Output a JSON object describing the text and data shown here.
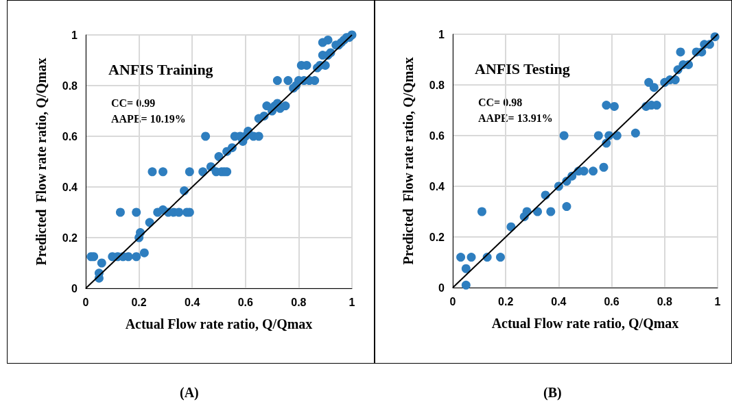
{
  "chart_data": [
    {
      "type": "scatter",
      "title": "ANFIS Training",
      "xlabel": "Actual Flow rate ratio, Q/Qmax",
      "ylabel": "Predicted  Flow rate ratio, Q/Qmax",
      "annotations": [
        "CC= 0.99",
        "AAPE= 10.19%",
        "(A)"
      ],
      "xlim": [
        0,
        1
      ],
      "ylim": [
        0,
        1
      ],
      "xticks": [
        0,
        0.2,
        0.4,
        0.6,
        0.8,
        1
      ],
      "yticks": [
        0,
        0.2,
        0.4,
        0.6,
        0.8,
        1
      ],
      "grid": true,
      "marker": "circle",
      "series": [
        {
          "color": "#2e7ebf",
          "x": [
            0.02,
            0.03,
            0.06,
            0.05,
            0.05,
            0.1,
            0.12,
            0.13,
            0.14,
            0.16,
            0.19,
            0.19,
            0.2,
            0.205,
            0.22,
            0.24,
            0.25,
            0.27,
            0.29,
            0.29,
            0.31,
            0.33,
            0.35,
            0.37,
            0.38,
            0.39,
            0.39,
            0.44,
            0.45,
            0.47,
            0.49,
            0.5,
            0.51,
            0.52,
            0.53,
            0.53,
            0.55,
            0.56,
            0.58,
            0.59,
            0.6,
            0.61,
            0.63,
            0.65,
            0.65,
            0.67,
            0.68,
            0.7,
            0.71,
            0.72,
            0.72,
            0.73,
            0.75,
            0.76,
            0.78,
            0.79,
            0.8,
            0.81,
            0.82,
            0.83,
            0.84,
            0.86,
            0.87,
            0.88,
            0.89,
            0.89,
            0.9,
            0.91,
            0.91,
            0.92,
            0.94,
            0.95,
            0.96,
            0.97,
            0.98,
            0.99,
            1.0
          ],
          "values": [
            0.125,
            0.125,
            0.1,
            0.06,
            0.04,
            0.125,
            0.125,
            0.3,
            0.125,
            0.125,
            0.3,
            0.125,
            0.2,
            0.22,
            0.14,
            0.26,
            0.46,
            0.3,
            0.46,
            0.31,
            0.3,
            0.3,
            0.3,
            0.385,
            0.3,
            0.3,
            0.46,
            0.46,
            0.6,
            0.48,
            0.46,
            0.52,
            0.46,
            0.46,
            0.54,
            0.46,
            0.555,
            0.6,
            0.6,
            0.58,
            0.6,
            0.62,
            0.6,
            0.6,
            0.67,
            0.68,
            0.72,
            0.7,
            0.72,
            0.73,
            0.82,
            0.71,
            0.72,
            0.82,
            0.79,
            0.8,
            0.82,
            0.88,
            0.82,
            0.88,
            0.82,
            0.82,
            0.87,
            0.88,
            0.92,
            0.97,
            0.88,
            0.92,
            0.98,
            0.93,
            0.96,
            0.96,
            0.97,
            0.98,
            0.99,
            0.99,
            1.0
          ]
        },
        {
          "type": "line",
          "color": "#000000",
          "x": [
            0,
            1
          ],
          "values": [
            0,
            1
          ],
          "marker": "none",
          "line_style": "solid"
        }
      ]
    },
    {
      "type": "scatter",
      "title": "ANFIS Testing",
      "xlabel": "Actual Flow rate ratio, Q/Qmax",
      "ylabel": "Predicted  Flow rate ratio, Q/Qmax",
      "annotations": [
        "CC= 0.98",
        "AAPE= 13.91%",
        "(B)"
      ],
      "xlim": [
        0,
        1
      ],
      "ylim": [
        0,
        1
      ],
      "xticks": [
        0,
        0.2,
        0.4,
        0.6,
        0.8,
        1
      ],
      "yticks": [
        0,
        0.2,
        0.4,
        0.6,
        0.8,
        1
      ],
      "grid": true,
      "marker": "circle",
      "series": [
        {
          "color": "#2e7ebf",
          "x": [
            0.03,
            0.05,
            0.05,
            0.07,
            0.11,
            0.13,
            0.18,
            0.22,
            0.27,
            0.28,
            0.32,
            0.35,
            0.37,
            0.4,
            0.42,
            0.43,
            0.43,
            0.45,
            0.475,
            0.495,
            0.53,
            0.55,
            0.57,
            0.58,
            0.58,
            0.59,
            0.61,
            0.62,
            0.69,
            0.73,
            0.74,
            0.75,
            0.76,
            0.77,
            0.8,
            0.82,
            0.84,
            0.85,
            0.86,
            0.87,
            0.89,
            0.92,
            0.94,
            0.95,
            0.97,
            0.99
          ],
          "values": [
            0.12,
            0.075,
            0.01,
            0.12,
            0.3,
            0.12,
            0.12,
            0.24,
            0.28,
            0.3,
            0.3,
            0.365,
            0.3,
            0.4,
            0.6,
            0.32,
            0.42,
            0.44,
            0.46,
            0.46,
            0.46,
            0.6,
            0.475,
            0.72,
            0.57,
            0.6,
            0.715,
            0.6,
            0.61,
            0.715,
            0.81,
            0.72,
            0.79,
            0.72,
            0.81,
            0.82,
            0.82,
            0.86,
            0.93,
            0.88,
            0.88,
            0.93,
            0.93,
            0.96,
            0.96,
            0.99
          ]
        },
        {
          "type": "line",
          "color": "#000000",
          "x": [
            0,
            1
          ],
          "values": [
            0,
            1
          ],
          "marker": "none",
          "line_style": "solid"
        }
      ]
    }
  ]
}
